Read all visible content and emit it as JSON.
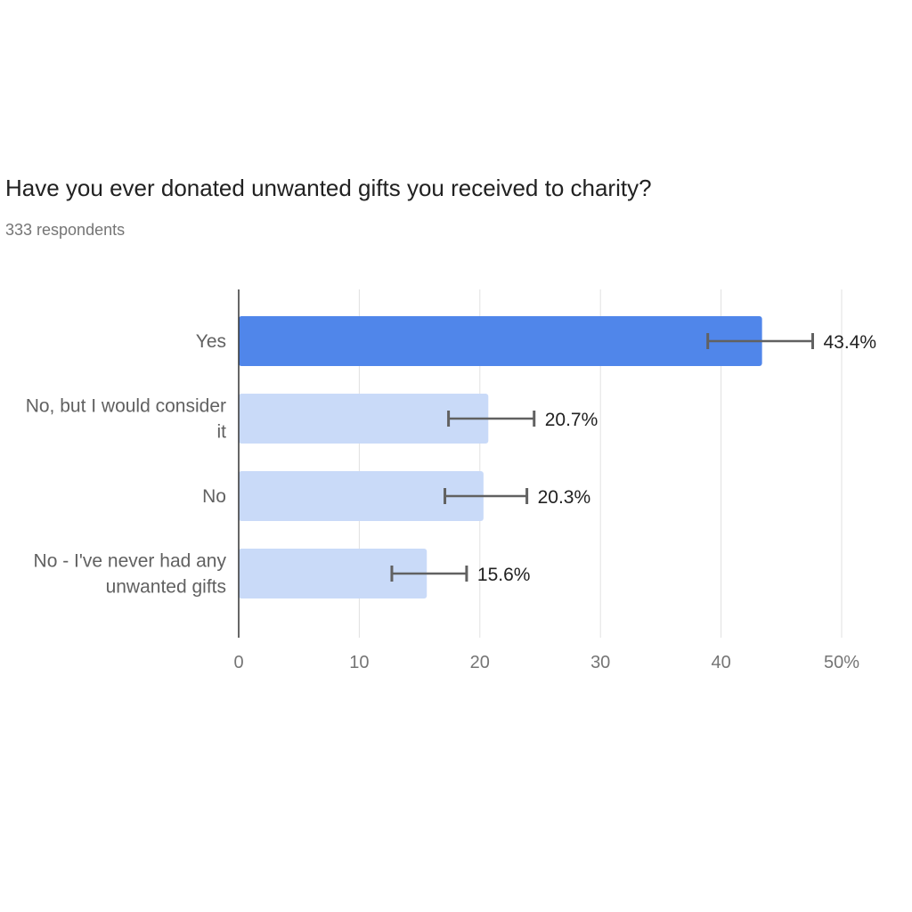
{
  "chart_data": {
    "type": "bar",
    "orientation": "horizontal",
    "title": "Have you ever donated unwanted gifts you received to charity?",
    "subtitle": "333 respondents",
    "categories": [
      "Yes",
      "No, but I would consider it",
      "No",
      "No - I've never had any unwanted gifts"
    ],
    "values": [
      43.4,
      20.7,
      20.3,
      15.6
    ],
    "value_labels": [
      "43.4%",
      "20.7%",
      "20.3%",
      "15.6%"
    ],
    "error_bars": [
      [
        38.9,
        47.6
      ],
      [
        17.4,
        24.5
      ],
      [
        17.1,
        23.9
      ],
      [
        12.7,
        18.9
      ]
    ],
    "xlim": [
      0,
      50
    ],
    "x_ticks": [
      0,
      10,
      20,
      30,
      40,
      50
    ],
    "x_tick_labels": [
      "0",
      "10",
      "20",
      "30",
      "40",
      "50%"
    ],
    "grid": true,
    "colors": {
      "highlight": "#5086EA",
      "bar": "#C9DAF8",
      "error_bar": "#616161",
      "grid": "#E0E0E0",
      "axis": "#757575"
    }
  }
}
